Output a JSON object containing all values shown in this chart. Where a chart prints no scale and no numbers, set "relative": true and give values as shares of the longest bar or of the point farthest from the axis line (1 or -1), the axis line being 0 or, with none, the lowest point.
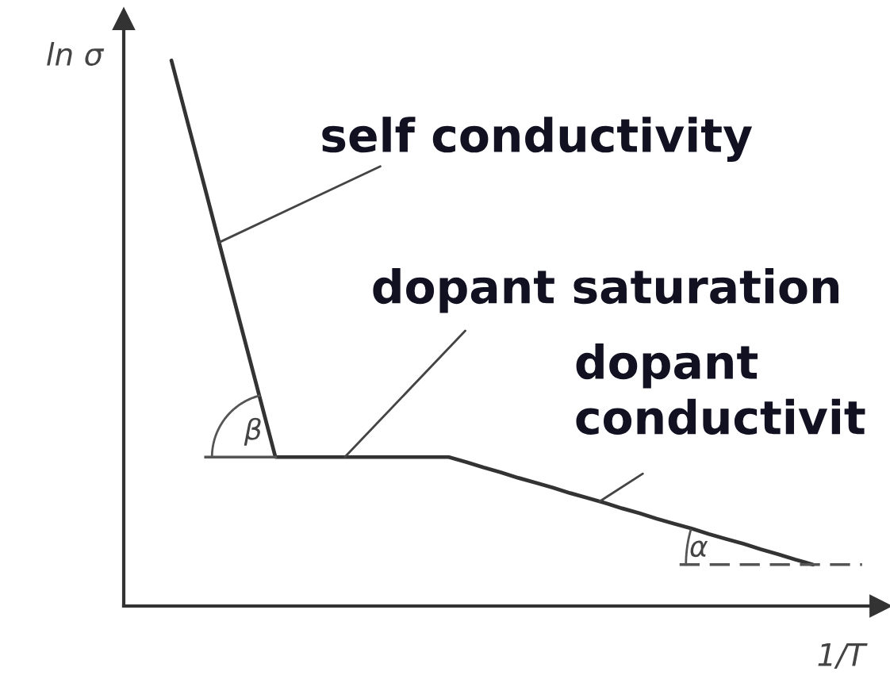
{
  "chart_data": {
    "type": "line",
    "relative": true,
    "xlabel": "1/T",
    "ylabel": "ln σ",
    "categories": [
      null,
      null,
      null,
      null,
      null,
      null,
      null,
      null,
      null,
      null,
      null,
      null,
      null,
      null,
      null,
      null,
      null,
      null,
      null,
      null,
      null,
      null,
      null,
      null,
      null,
      null,
      null,
      null,
      null,
      null,
      null,
      null,
      null,
      null,
      null,
      null,
      null,
      null
    ],
    "series": [
      {
        "color": "#333333",
        "values": [
          1,
          0.879,
          0.758,
          0.636,
          0.515,
          0.394,
          0.273,
          0.273,
          0.273,
          0.273,
          0.273,
          0.273,
          0.273,
          0.273,
          0.273,
          0.273,
          0.273,
          0.264,
          0.254,
          0.245,
          0.235,
          0.226,
          0.217,
          0.207,
          0.198,
          0.189,
          0.179,
          0.17,
          0.16,
          0.151,
          0.142,
          0.132,
          0.123,
          0.114,
          0.104,
          0.095,
          0.085,
          0.076
        ]
      }
    ],
    "annotations": [
      "self conductivity",
      "dopant saturation",
      "dopant\nconductivit",
      "β",
      "α"
    ]
  }
}
